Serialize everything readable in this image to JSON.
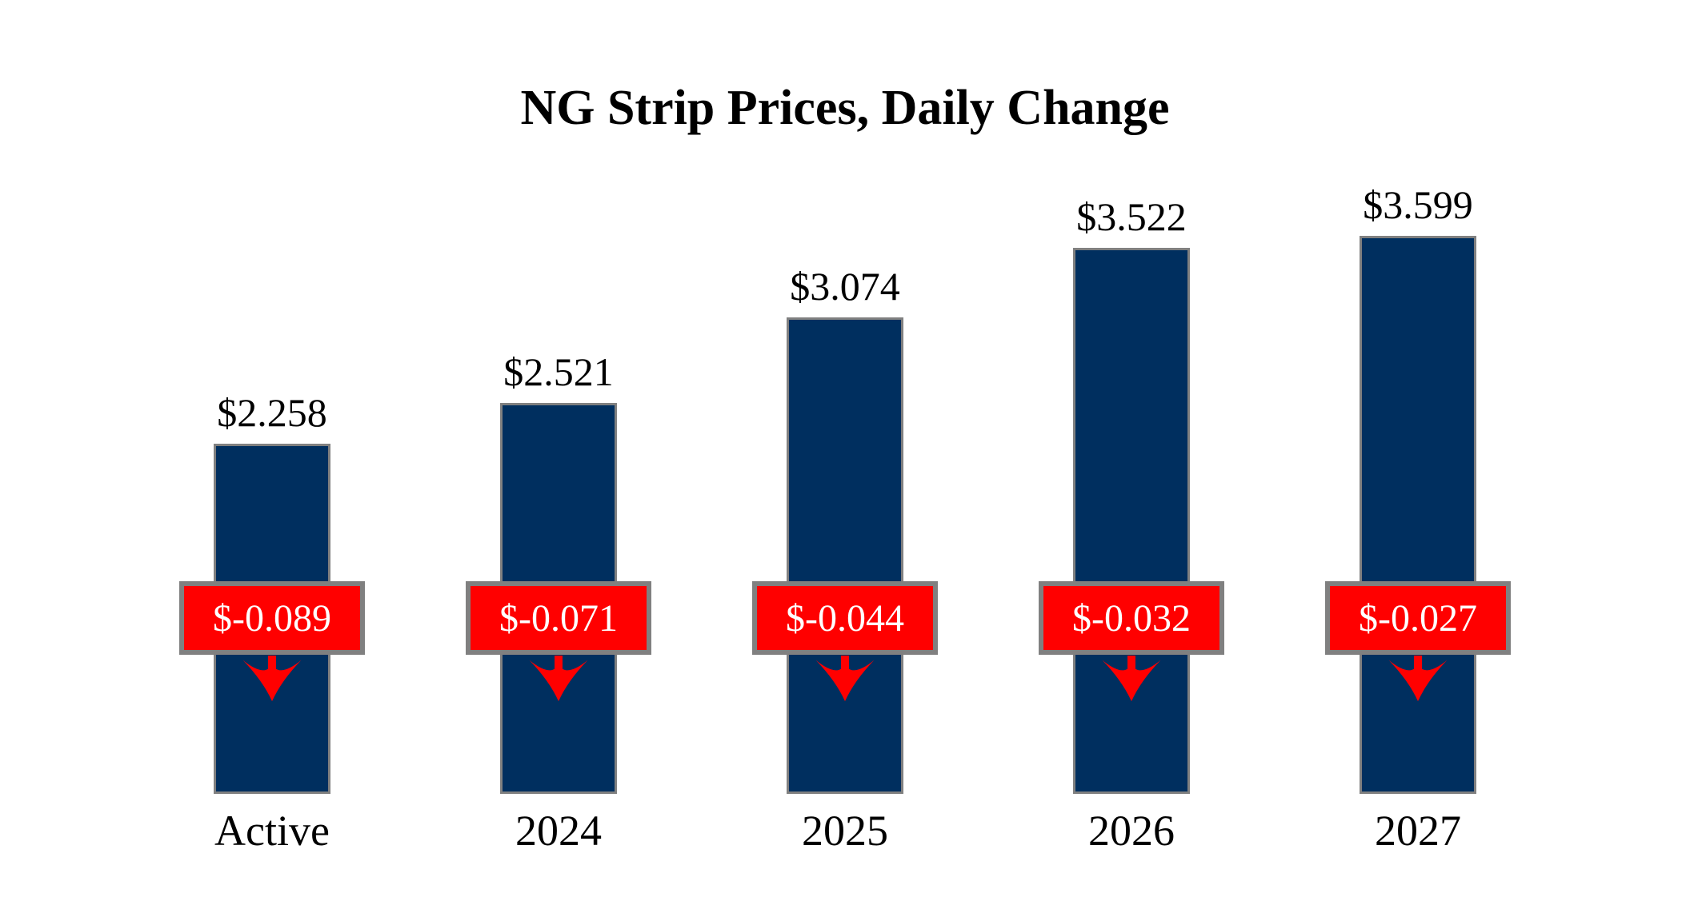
{
  "chart_data": {
    "type": "bar",
    "title": "NG Strip Prices, Daily Change",
    "categories": [
      "Active",
      "2024",
      "2025",
      "2026",
      "2027"
    ],
    "values": [
      2.258,
      2.521,
      3.074,
      3.522,
      3.599
    ],
    "value_labels": [
      "$2.258",
      "$2.521",
      "$3.074",
      "$3.522",
      "$3.599"
    ],
    "changes": [
      -0.089,
      -0.071,
      -0.044,
      -0.032,
      -0.027
    ],
    "change_labels": [
      "$-0.089",
      "$-0.071",
      "$-0.044",
      "$-0.032",
      "$-0.027"
    ],
    "change_direction": "down",
    "xlabel": "",
    "ylabel": "",
    "ylim": [
      0,
      3.75
    ],
    "grid": false,
    "legend": "none",
    "colors": {
      "bar_fill": "#002F5F",
      "bar_border": "#808080",
      "badge_fill": "#FF0000",
      "badge_border": "#808080",
      "badge_text": "#FFFFFF",
      "arrow": "#FF0000",
      "label_text": "#000000",
      "background": "#FFFFFF"
    }
  }
}
